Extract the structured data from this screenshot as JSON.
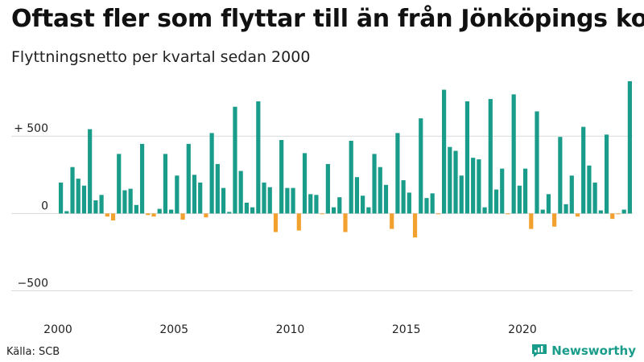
{
  "title": "Oftast fler som flyttar till än från Jönköpings kommun",
  "subtitle": "Flyttningsnetto per kvartal sedan 2000",
  "source": "Källa: SCB",
  "brand": "Newsworthy",
  "colors": {
    "positive": "#1a9c8a",
    "negative": "#f2a12e",
    "grid": "#d9d9d9",
    "brand": "#1a9c8a"
  },
  "chart_data": {
    "type": "bar",
    "title": "Oftast fler som flyttar till än från Jönköpings kommun",
    "subtitle": "Flyttningsnetto per kvartal sedan 2000",
    "ylim": [
      -700,
      860
    ],
    "yticks": [
      {
        "value": 500,
        "label": "+ 500"
      },
      {
        "value": 0,
        "label": "0"
      },
      {
        "value": -500,
        "label": "−500"
      }
    ],
    "xticks": [
      "2000",
      "2005",
      "2010",
      "2015",
      "2020"
    ],
    "grid": true,
    "start": "2000 Q1",
    "values": [
      200,
      15,
      300,
      225,
      180,
      545,
      85,
      120,
      -20,
      -45,
      385,
      150,
      160,
      55,
      450,
      -10,
      -20,
      30,
      385,
      25,
      245,
      -40,
      450,
      250,
      200,
      -25,
      520,
      320,
      165,
      10,
      690,
      275,
      70,
      40,
      725,
      200,
      170,
      -120,
      475,
      165,
      165,
      -110,
      390,
      125,
      120,
      -5,
      320,
      40,
      105,
      -120,
      470,
      235,
      115,
      40,
      385,
      300,
      185,
      -100,
      520,
      215,
      135,
      -155,
      615,
      100,
      130,
      -5,
      800,
      430,
      405,
      245,
      725,
      360,
      350,
      40,
      740,
      155,
      290,
      -5,
      770,
      180,
      290,
      -100,
      660,
      25,
      125,
      -85,
      495,
      60,
      245,
      -20,
      560,
      310,
      200,
      20,
      510,
      -35,
      -5,
      25,
      855
    ]
  }
}
